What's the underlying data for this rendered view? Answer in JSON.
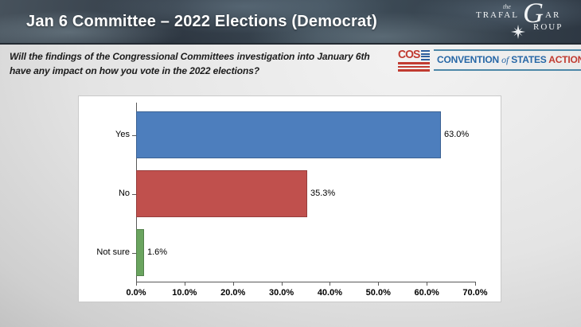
{
  "header": {
    "title": "Jan 6 Committee – 2022 Elections (Democrat)",
    "trafalgar_logo": {
      "the": "the",
      "line1_left": "TRAFAL",
      "big_g": "G",
      "line1_right": "AR",
      "line2": "ROUP"
    }
  },
  "question": {
    "text": "Will the findings of the Congressional Committees investigation into January 6th have any impact on how you vote in the 2022 elections?"
  },
  "cos_logo": {
    "acronym": "COS",
    "wordmark_part1": "CONVENTION",
    "wordmark_part2": "of",
    "wordmark_part3": "STATES",
    "wordmark_part4": "ACTION",
    "colors": {
      "blue": "#2767a6",
      "red": "#c13b31",
      "rule": "#4d88a8"
    }
  },
  "chart_data": {
    "type": "bar",
    "orientation": "horizontal",
    "categories": [
      "Yes",
      "No",
      "Not sure"
    ],
    "values": [
      63.0,
      35.3,
      1.6
    ],
    "value_labels": [
      "63.0%",
      "35.3%",
      "1.6%"
    ],
    "bar_colors": [
      "#4d7ebd",
      "#c0504d",
      "#6aa45f"
    ],
    "x_tick_labels": [
      "0.0%",
      "10.0%",
      "20.0%",
      "30.0%",
      "40.0%",
      "50.0%",
      "60.0%",
      "70.0%"
    ],
    "xlim": [
      0,
      70
    ],
    "title": "",
    "xlabel": "",
    "ylabel": "",
    "grid": false,
    "legend": false,
    "background": "#ffffff"
  }
}
